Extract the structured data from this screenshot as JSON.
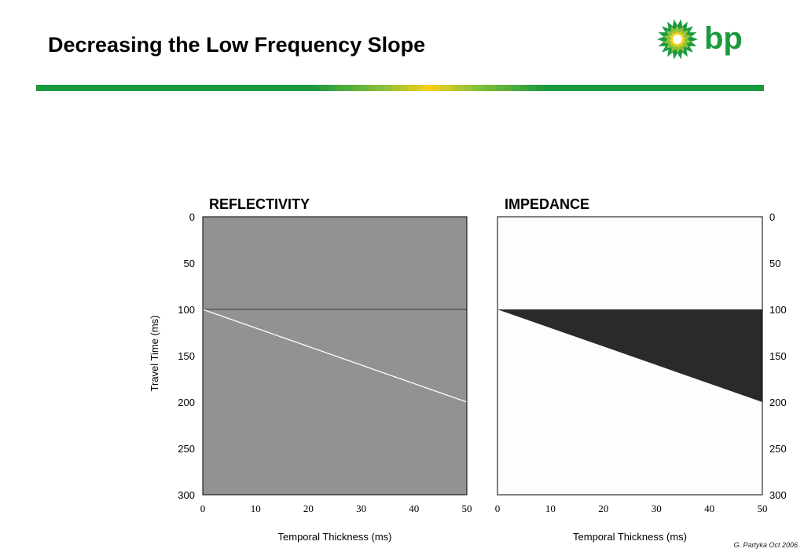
{
  "slide": {
    "title": "Decreasing the Low Frequency Slope",
    "credit": "G. Partyka Oct 2006",
    "logo_text": "bp"
  },
  "colors": {
    "reflectivity_background": "#929292",
    "reflectivity_interface_top": "#555555",
    "reflectivity_interface_base": "#ffffff",
    "impedance_background": "#fdfdfd",
    "impedance_wedge": "#2a2a2a",
    "divider_green": "#1a9a3c",
    "divider_yellow": "#f7d117"
  },
  "chart_data": [
    {
      "type": "heatmap",
      "title": "REFLECTIVITY",
      "xlabel": "Temporal Thickness (ms)",
      "ylabel": "Travel Time (ms)",
      "xlim": [
        0,
        50
      ],
      "ylim": [
        0,
        300
      ],
      "y_inverted": true,
      "x_ticks": [
        0,
        10,
        20,
        30,
        40,
        50
      ],
      "y_ticks": [
        0,
        50,
        100,
        150,
        200,
        250,
        300
      ],
      "y_axis_side": "left",
      "series": [
        {
          "role": "top-of-wedge",
          "points": [
            [
              0,
              100
            ],
            [
              50,
              100
            ]
          ],
          "color": "#555555"
        },
        {
          "role": "base-of-wedge",
          "points": [
            [
              0,
              100
            ],
            [
              50,
              200
            ]
          ],
          "color": "#ffffff"
        }
      ]
    },
    {
      "type": "heatmap",
      "title": "IMPEDANCE",
      "xlabel": "Temporal Thickness (ms)",
      "ylabel": "",
      "xlim": [
        0,
        50
      ],
      "ylim": [
        0,
        300
      ],
      "y_inverted": true,
      "x_ticks": [
        0,
        10,
        20,
        30,
        40,
        50
      ],
      "y_ticks": [
        0,
        50,
        100,
        150,
        200,
        250,
        300
      ],
      "y_axis_side": "right",
      "wedge": {
        "points": [
          [
            0,
            100
          ],
          [
            50,
            100
          ],
          [
            50,
            200
          ]
        ],
        "color": "#2a2a2a"
      }
    }
  ]
}
